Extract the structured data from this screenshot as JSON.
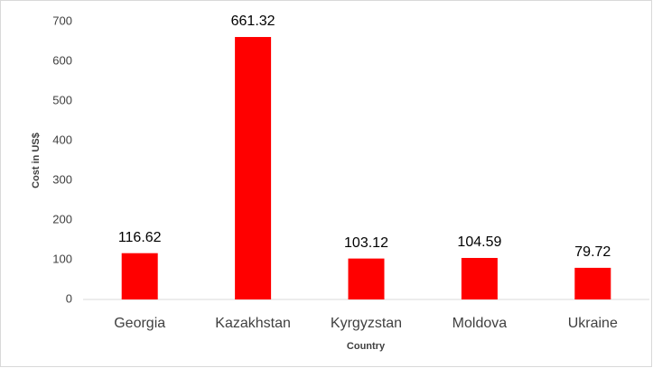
{
  "chart_data": {
    "type": "bar",
    "categories": [
      "Georgia",
      "Kazakhstan",
      "Kyrgyzstan",
      "Moldova",
      "Ukraine"
    ],
    "values": [
      116.62,
      661.32,
      103.12,
      104.59,
      79.72
    ],
    "color": "#ff0000",
    "x_label": "Country",
    "y_label": "Cost in US$",
    "ylim": [
      0,
      700
    ],
    "yticks": [
      0,
      100,
      200,
      300,
      400,
      500,
      600,
      700
    ],
    "grid": false
  }
}
